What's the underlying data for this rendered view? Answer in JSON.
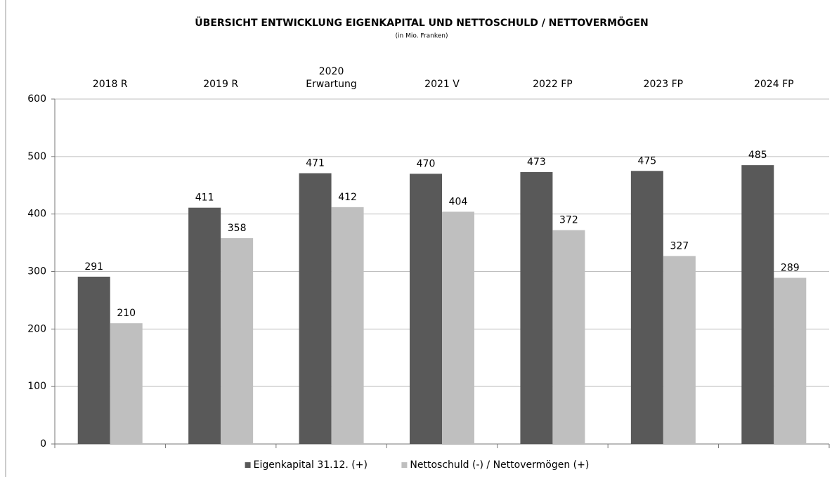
{
  "chart_data": {
    "type": "bar",
    "title": "ÜBERSICHT ENTWICKLUNG EIGENKAPITAL UND NETTOSCHULD  / NETTOVERMÖGEN",
    "subtitle": "(in Mio. Franken)",
    "categories": [
      "2018 R",
      "2019 R",
      "2020\nErwartung",
      "2021 V",
      "2022 FP",
      "2023 FP",
      "2024 FP"
    ],
    "series": [
      {
        "name": "Eigenkapital 31.12. (+)",
        "color": "#595959",
        "values": [
          291,
          411,
          471,
          470,
          473,
          475,
          485
        ]
      },
      {
        "name": "Nettoschuld (-) / Nettovermögen (+)",
        "color": "#bfbfbf",
        "values": [
          210,
          358,
          412,
          404,
          372,
          327,
          289
        ]
      }
    ],
    "ylim": [
      0,
      600
    ],
    "yticks": [
      0,
      100,
      200,
      300,
      400,
      500,
      600
    ],
    "grid": true,
    "legend": "bottom"
  }
}
